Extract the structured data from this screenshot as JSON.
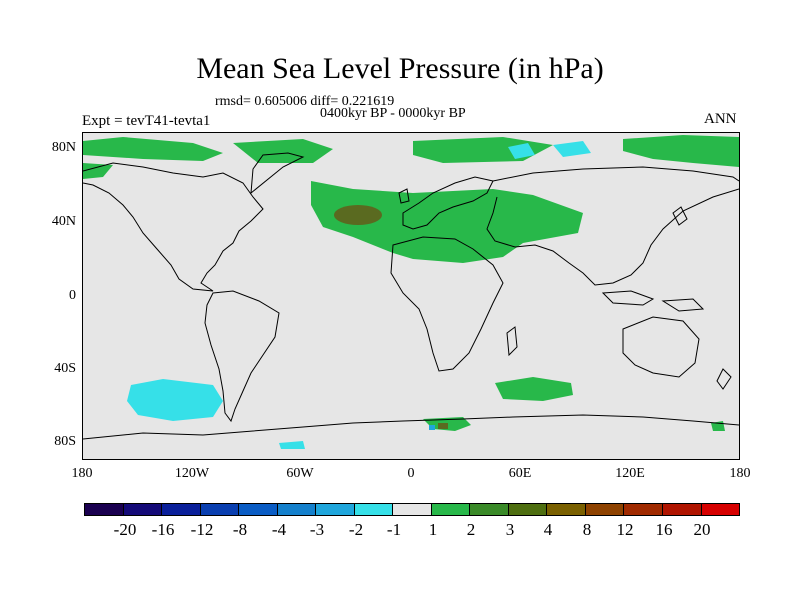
{
  "title": "Mean Sea Level Pressure (in hPa)",
  "stats": "rmsd= 0.605006 diff= 0.221619",
  "period": "0400kyr BP - 0000kyr BP",
  "expt": "Expt = tevT41-tevta1",
  "season": "ANN",
  "lat_ticks": [
    "80N",
    "40N",
    "0",
    "40S",
    "80S"
  ],
  "lon_ticks": [
    "180",
    "120W",
    "60W",
    "0",
    "60E",
    "120E",
    "180"
  ],
  "colorbar": {
    "labels": [
      "-20",
      "-16",
      "-12",
      "-8",
      "-4",
      "-3",
      "-2",
      "-1",
      "1",
      "2",
      "3",
      "4",
      "8",
      "12",
      "16",
      "20"
    ],
    "colors": [
      "#1a0050",
      "#140a78",
      "#0a1f9a",
      "#0a3fb0",
      "#0a5cc4",
      "#1480cc",
      "#1fa6dc",
      "#36e0e8",
      "#e6e6e6",
      "#28b84a",
      "#3a8a28",
      "#4e6e10",
      "#7a6000",
      "#8e4200",
      "#a02a00",
      "#b01400",
      "#d60000"
    ]
  },
  "colors": {
    "land_bg": "#e6e6e6",
    "positive_1_2": "#28b84a",
    "positive_3_4": "#5a6a20",
    "negative_2_1": "#36e0e8",
    "negative_3_2": "#1fa6dc"
  }
}
